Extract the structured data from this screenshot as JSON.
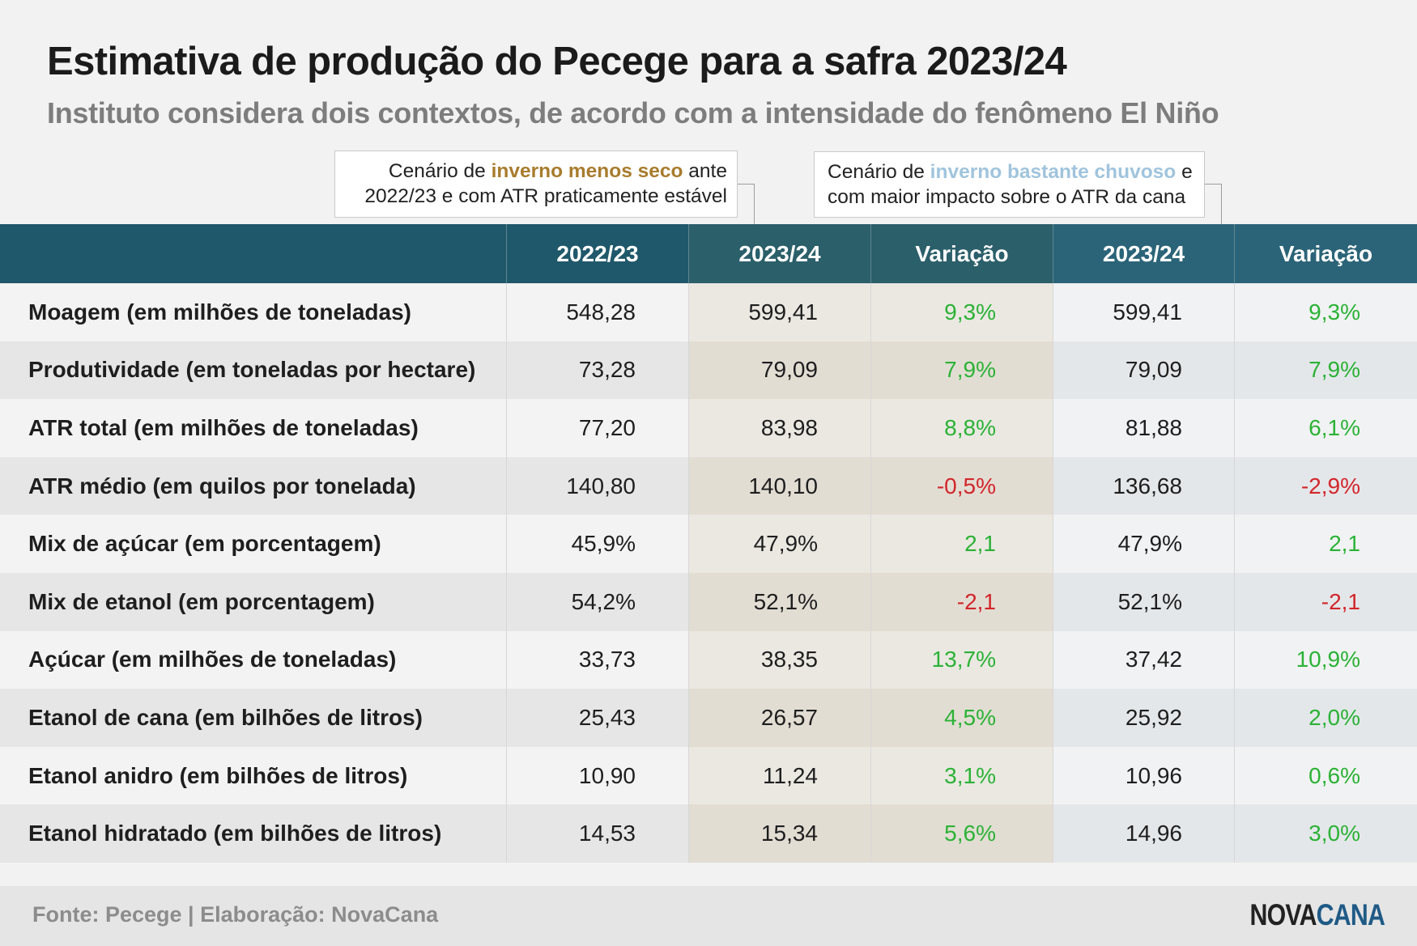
{
  "title": "Estimativa de produção do Pecege para a safra 2023/24",
  "subtitle": "Instituto considera dois contextos, de acordo com a intensidade do fenômeno El Niño",
  "scenarios": {
    "a": {
      "prefix": "Cenário de ",
      "highlight": "inverno menos seco",
      "suffix": " ante",
      "line2": "2022/23 e com ATR praticamente estável",
      "highlight_color": "#a87c2e"
    },
    "b": {
      "prefix": "Cenário de ",
      "highlight": "inverno bastante chuvoso",
      "suffix": " e",
      "line2": "com maior impacto sobre o ATR da cana",
      "highlight_color": "#a0c4dd"
    }
  },
  "table": {
    "headers": [
      "",
      "2022/23",
      "2023/24",
      "Variação",
      "2023/24",
      "Variação"
    ],
    "rows": [
      {
        "label": "Moagem (em milhões de toneladas)",
        "v2223": "548,28",
        "a2324": "599,41",
        "avar": "9,3%",
        "avar_sign": "pos",
        "b2324": "599,41",
        "bvar": "9,3%",
        "bvar_sign": "pos"
      },
      {
        "label": "Produtividade (em toneladas por hectare)",
        "v2223": "73,28",
        "a2324": "79,09",
        "avar": "7,9%",
        "avar_sign": "pos",
        "b2324": "79,09",
        "bvar": "7,9%",
        "bvar_sign": "pos"
      },
      {
        "label": "ATR total (em milhões de toneladas)",
        "v2223": "77,20",
        "a2324": "83,98",
        "avar": "8,8%",
        "avar_sign": "pos",
        "b2324": "81,88",
        "bvar": "6,1%",
        "bvar_sign": "pos"
      },
      {
        "label": "ATR médio (em quilos por tonelada)",
        "v2223": "140,80",
        "a2324": "140,10",
        "avar": "-0,5%",
        "avar_sign": "neg",
        "b2324": "136,68",
        "bvar": "-2,9%",
        "bvar_sign": "neg"
      },
      {
        "label": "Mix de açúcar (em porcentagem)",
        "v2223": "45,9%",
        "a2324": "47,9%",
        "avar": "2,1",
        "avar_sign": "pos",
        "b2324": "47,9%",
        "bvar": "2,1",
        "bvar_sign": "pos"
      },
      {
        "label": "Mix de etanol (em porcentagem)",
        "v2223": "54,2%",
        "a2324": "52,1%",
        "avar": "-2,1",
        "avar_sign": "neg",
        "b2324": "52,1%",
        "bvar": "-2,1",
        "bvar_sign": "neg"
      },
      {
        "label": "Açúcar (em milhões de toneladas)",
        "v2223": "33,73",
        "a2324": "38,35",
        "avar": "13,7%",
        "avar_sign": "pos",
        "b2324": "37,42",
        "bvar": "10,9%",
        "bvar_sign": "pos"
      },
      {
        "label": "Etanol de cana (em bilhões de litros)",
        "v2223": "25,43",
        "a2324": "26,57",
        "avar": "4,5%",
        "avar_sign": "pos",
        "b2324": "25,92",
        "bvar": "2,0%",
        "bvar_sign": "pos"
      },
      {
        "label": "Etanol anidro (em bilhões de litros)",
        "v2223": "10,90",
        "a2324": "11,24",
        "avar": "3,1%",
        "avar_sign": "pos",
        "b2324": "10,96",
        "bvar": "0,6%",
        "bvar_sign": "pos"
      },
      {
        "label": "Etanol hidratado (em bilhões de litros)",
        "v2223": "14,53",
        "a2324": "15,34",
        "avar": "5,6%",
        "avar_sign": "pos",
        "b2324": "14,96",
        "bvar": "3,0%",
        "bvar_sign": "pos"
      }
    ]
  },
  "colors": {
    "header_bg": "#1f586a",
    "positive": "#2bb236",
    "negative": "#d2262b"
  },
  "footer": {
    "source": "Fonte: Pecege | Elaboração: NovaCana",
    "logo_nova": "NOVA",
    "logo_cana": "CANA"
  }
}
